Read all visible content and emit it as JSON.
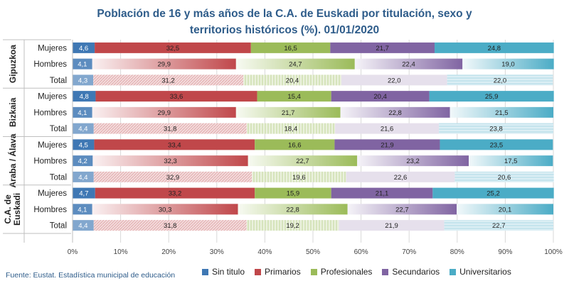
{
  "chart_data": {
    "type": "bar",
    "orientation": "horizontal",
    "stacked": "100%",
    "title_line1": "Población de 16 y más años de la C.A. de Euskadi por titulación, sexo y",
    "title_line2": "territorios históricos (%). 01/01/2020",
    "xlim": [
      0,
      100
    ],
    "x_ticks": [
      "0%",
      "10%",
      "20%",
      "30%",
      "40%",
      "50%",
      "60%",
      "70%",
      "80%",
      "90%",
      "100%"
    ],
    "grid": true,
    "legend_position": "bottom",
    "series": [
      {
        "name": "Sin titulo",
        "color": "#3f78b4"
      },
      {
        "name": "Primarios",
        "color": "#c0474a"
      },
      {
        "name": "Profesionales",
        "color": "#9bbb59"
      },
      {
        "name": "Secundarios",
        "color": "#8064a2"
      },
      {
        "name": "Universitarios",
        "color": "#4bacc6"
      }
    ],
    "groups": [
      {
        "name": "Gipuzkoa",
        "rows": [
          {
            "label": "Mujeres",
            "values": [
              4.6,
              32.5,
              16.5,
              21.7,
              24.8
            ],
            "labels": [
              "4,6",
              "32,5",
              "16,5",
              "21,7",
              "24,8"
            ]
          },
          {
            "label": "Hombres",
            "values": [
              4.1,
              29.9,
              24.7,
              22.4,
              19.0
            ],
            "labels": [
              "4,1",
              "29,9",
              "24,7",
              "22,4",
              "19,0"
            ]
          },
          {
            "label": "Total",
            "values": [
              4.3,
              31.2,
              20.4,
              22.0,
              22.0
            ],
            "labels": [
              "4,3",
              "31,2",
              "20,4",
              "22,0",
              "22,0"
            ]
          }
        ]
      },
      {
        "name": "Bizkaia",
        "rows": [
          {
            "label": "Mujeres",
            "values": [
              4.8,
              33.6,
              15.4,
              20.4,
              25.9
            ],
            "labels": [
              "4,8",
              "33,6",
              "15,4",
              "20,4",
              "25,9"
            ]
          },
          {
            "label": "Hombres",
            "values": [
              4.1,
              29.9,
              21.7,
              22.8,
              21.5
            ],
            "labels": [
              "4,1",
              "29,9",
              "21,7",
              "22,8",
              "21,5"
            ]
          },
          {
            "label": "Total",
            "values": [
              4.4,
              31.8,
              18.4,
              21.6,
              23.8
            ],
            "labels": [
              "4,4",
              "31,8",
              "18,4",
              "21,6",
              "23,8"
            ]
          }
        ]
      },
      {
        "name": "Araba / Álava",
        "rows": [
          {
            "label": "Mujeres",
            "values": [
              4.5,
              33.4,
              16.6,
              21.9,
              23.5
            ],
            "labels": [
              "4,5",
              "33,4",
              "16,6",
              "21,9",
              "23,5"
            ]
          },
          {
            "label": "Hombres",
            "values": [
              4.2,
              32.3,
              22.7,
              23.2,
              17.5
            ],
            "labels": [
              "4,2",
              "32,3",
              "22,7",
              "23,2",
              "17,5"
            ]
          },
          {
            "label": "Total",
            "values": [
              4.4,
              32.9,
              19.6,
              22.6,
              20.6
            ],
            "labels": [
              "4,4",
              "32,9",
              "19,6",
              "22,6",
              "20,6"
            ]
          }
        ]
      },
      {
        "name": "C.A. de Euskadi",
        "rows": [
          {
            "label": "Mujeres",
            "values": [
              4.7,
              33.2,
              15.9,
              21.1,
              25.2
            ],
            "labels": [
              "4,7",
              "33,2",
              "15,9",
              "21,1",
              "25,2"
            ]
          },
          {
            "label": "Hombres",
            "values": [
              4.1,
              30.3,
              22.8,
              22.7,
              20.1
            ],
            "labels": [
              "4,1",
              "30,3",
              "22,8",
              "22,7",
              "20,1"
            ]
          },
          {
            "label": "Total",
            "values": [
              4.4,
              31.8,
              19.2,
              21.9,
              22.7
            ],
            "labels": [
              "4,4",
              "31,8",
              "19,2",
              "21,9",
              "22,7"
            ]
          }
        ]
      }
    ]
  },
  "source": "Fuente: Eustat. Estadística municipal de educación"
}
